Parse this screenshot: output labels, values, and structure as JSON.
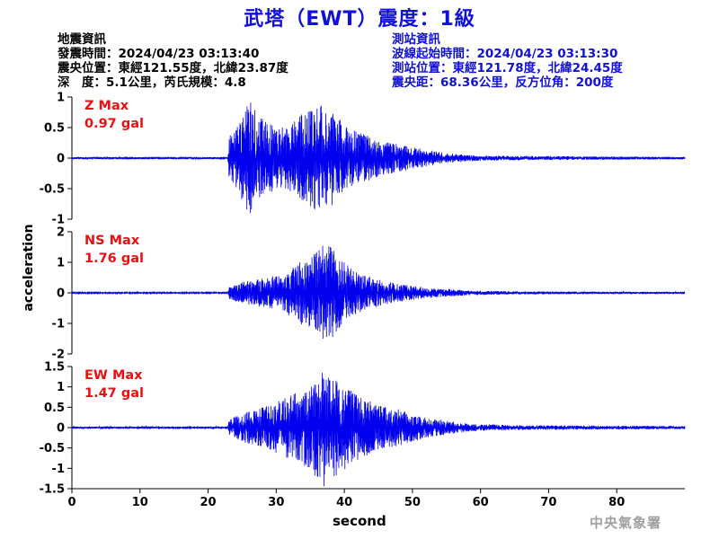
{
  "title": "武塔（EWT）震度：1級",
  "eq_info": {
    "heading": "地震資訊",
    "time": "發震時間：2024/04/23 03:13:40",
    "location": "震央位置：東經121.55度，北緯23.87度",
    "depth_mag": "深　度：5.1公里，芮氏規模：4.8"
  },
  "station_info": {
    "heading": "測站資訊",
    "wave_start": "波線起始時間：2024/04/23 03:13:30",
    "location": "測站位置：東經121.78度，北緯24.45度",
    "distance": "震央距：68.36公里，反方位角：200度"
  },
  "watermark": "中央氣象署",
  "colors": {
    "title": "#1010d8",
    "trace": "#0000ee",
    "max_label": "#e81010",
    "station_text": "#1010d8"
  },
  "chart_data": {
    "type": "line",
    "xlabel": "second",
    "ylabel": "acceleration",
    "xlim": [
      0,
      90
    ],
    "xticks": [
      0,
      10,
      20,
      30,
      40,
      50,
      60,
      70,
      80
    ],
    "panels": [
      {
        "name": "Z",
        "max_label": "Z Max",
        "max_value": "0.97 gal",
        "ylim": [
          -1,
          1
        ],
        "yticks": [
          1,
          0.5,
          0,
          -0.5,
          -1
        ],
        "arrival": 23.0,
        "envelope": [
          [
            0,
            0.02
          ],
          [
            22.9,
            0.02
          ],
          [
            23.0,
            0.35
          ],
          [
            24,
            0.5
          ],
          [
            26,
            0.95
          ],
          [
            28,
            0.65
          ],
          [
            30,
            0.5
          ],
          [
            32,
            0.55
          ],
          [
            34,
            0.75
          ],
          [
            36,
            0.9
          ],
          [
            38,
            0.8
          ],
          [
            40,
            0.55
          ],
          [
            42,
            0.45
          ],
          [
            45,
            0.3
          ],
          [
            50,
            0.18
          ],
          [
            55,
            0.08
          ],
          [
            60,
            0.04
          ],
          [
            90,
            0.02
          ]
        ]
      },
      {
        "name": "NS",
        "max_label": "NS Max",
        "max_value": "1.76 gal",
        "ylim": [
          -2,
          2
        ],
        "yticks": [
          2,
          1,
          0,
          -1,
          -2
        ],
        "arrival": 23.0,
        "envelope": [
          [
            0,
            0.02
          ],
          [
            22.9,
            0.02
          ],
          [
            23.0,
            0.2
          ],
          [
            25,
            0.35
          ],
          [
            28,
            0.5
          ],
          [
            31,
            0.6
          ],
          [
            33,
            0.95
          ],
          [
            35,
            1.2
          ],
          [
            37,
            1.65
          ],
          [
            38,
            1.55
          ],
          [
            39,
            1.2
          ],
          [
            41,
            0.8
          ],
          [
            44,
            0.5
          ],
          [
            48,
            0.3
          ],
          [
            52,
            0.18
          ],
          [
            58,
            0.08
          ],
          [
            65,
            0.05
          ],
          [
            90,
            0.03
          ]
        ]
      },
      {
        "name": "EW",
        "max_label": "EW Max",
        "max_value": "1.47 gal",
        "ylim": [
          -1.5,
          1.5
        ],
        "yticks": [
          1.5,
          1,
          0.5,
          0,
          -0.5,
          -1,
          -1.5
        ],
        "arrival": 23.0,
        "envelope": [
          [
            0,
            0.02
          ],
          [
            22.9,
            0.02
          ],
          [
            23.0,
            0.2
          ],
          [
            25,
            0.35
          ],
          [
            28,
            0.5
          ],
          [
            31,
            0.7
          ],
          [
            34,
            0.95
          ],
          [
            36,
            1.25
          ],
          [
            37,
            1.45
          ],
          [
            38,
            1.3
          ],
          [
            40,
            1.05
          ],
          [
            42,
            0.8
          ],
          [
            45,
            0.55
          ],
          [
            48,
            0.45
          ],
          [
            52,
            0.25
          ],
          [
            58,
            0.1
          ],
          [
            65,
            0.06
          ],
          [
            90,
            0.04
          ]
        ]
      }
    ]
  }
}
